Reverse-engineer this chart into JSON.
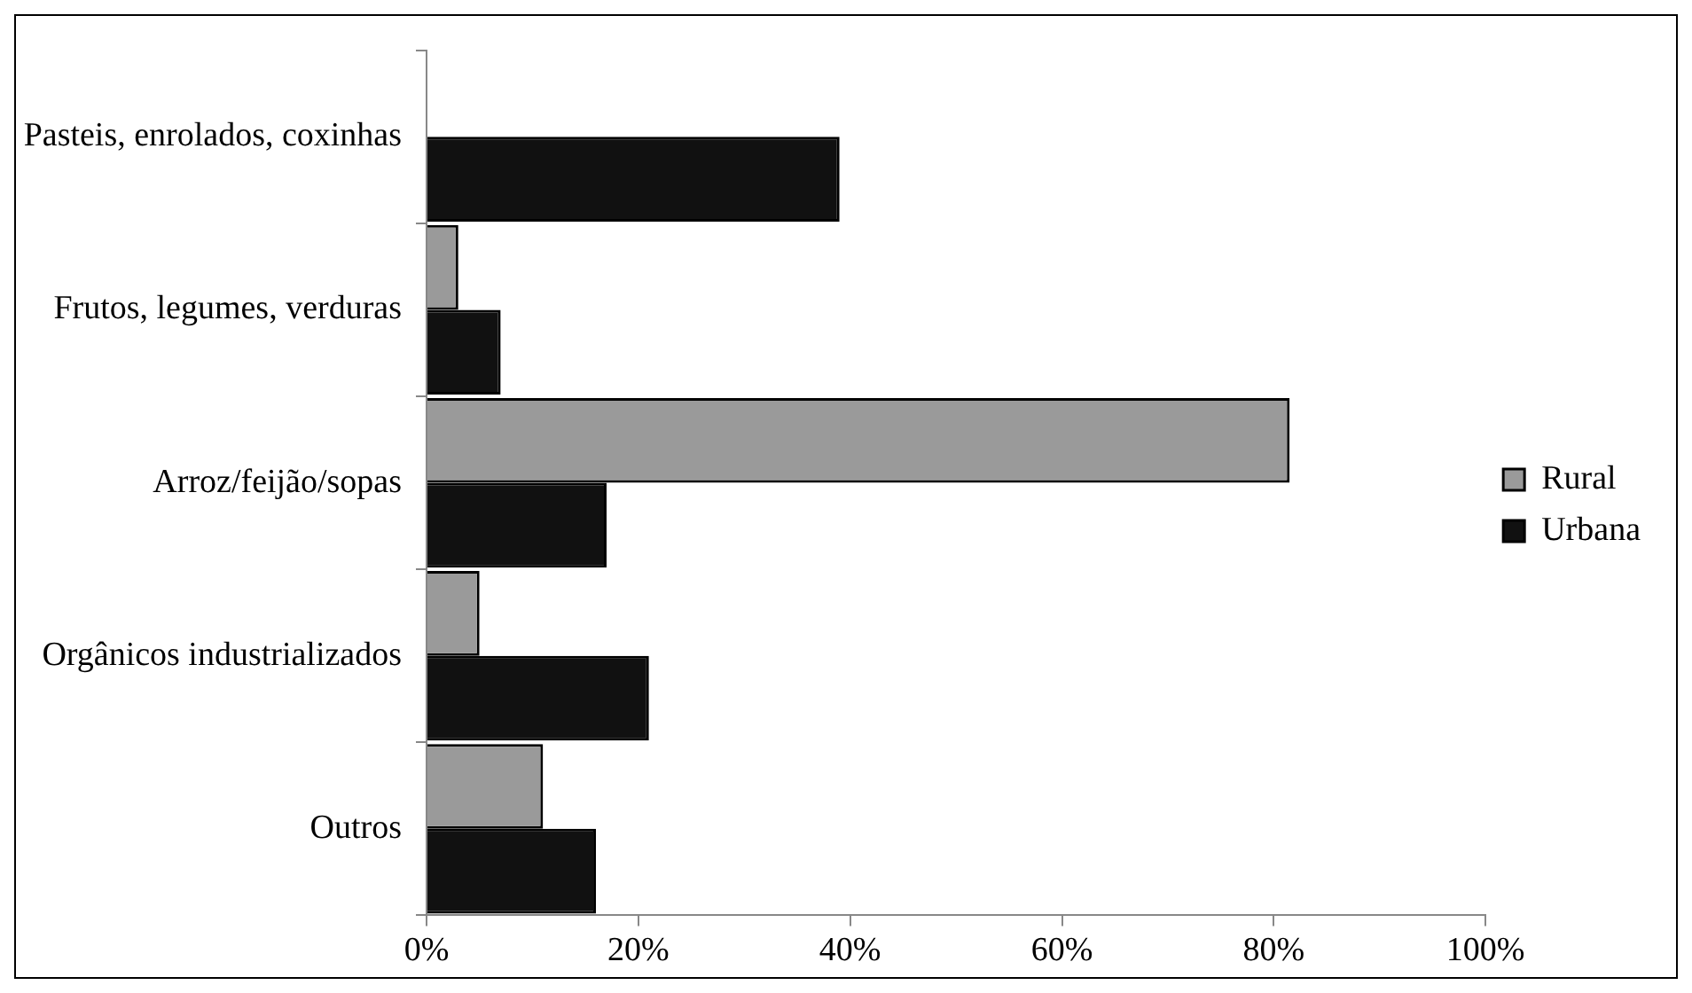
{
  "chart_data": {
    "type": "bar",
    "orientation": "horizontal",
    "categories": [
      "Pasteis, enrolados, coxinhas",
      "Frutos, legumes, verduras",
      "Arroz/feijão/sopas",
      "Orgânicos industrializados",
      "Outros"
    ],
    "series": [
      {
        "name": "Rural",
        "color": "#9a9a9a",
        "values": [
          0,
          3,
          81.5,
          5,
          11
        ]
      },
      {
        "name": "Urbana",
        "color": "#111111",
        "values": [
          39,
          7,
          17,
          21,
          16
        ]
      }
    ],
    "xlim": [
      0,
      100
    ],
    "xticks": [
      {
        "value": 0,
        "label": "0%"
      },
      {
        "value": 20,
        "label": "20%"
      },
      {
        "value": 40,
        "label": "40%"
      },
      {
        "value": 60,
        "label": "60%"
      },
      {
        "value": 80,
        "label": "80%"
      },
      {
        "value": 100,
        "label": "100%"
      }
    ],
    "grid": false,
    "legend": "right"
  }
}
